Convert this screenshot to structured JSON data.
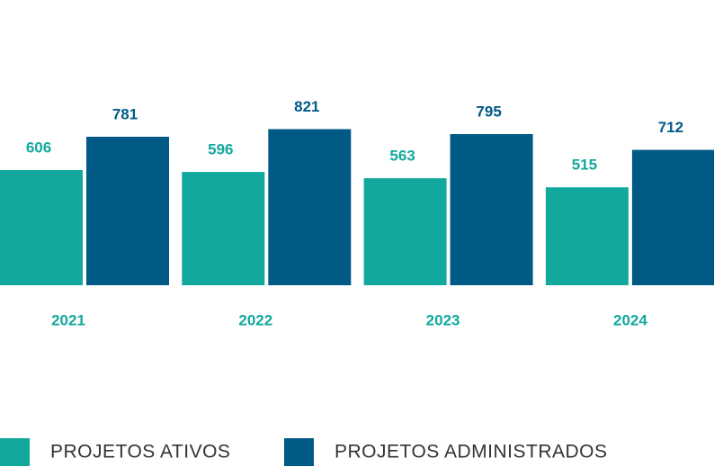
{
  "chart_data": {
    "type": "bar",
    "categories": [
      "2021",
      "2022",
      "2023",
      "2024"
    ],
    "series": [
      {
        "name": "PROJETOS ATIVOS",
        "color": "#13a89e",
        "values": [
          606,
          596,
          563,
          515
        ]
      },
      {
        "name": "PROJETOS ADMINISTRADOS",
        "color": "#005a85",
        "values": [
          781,
          821,
          795,
          712
        ]
      }
    ]
  }
}
